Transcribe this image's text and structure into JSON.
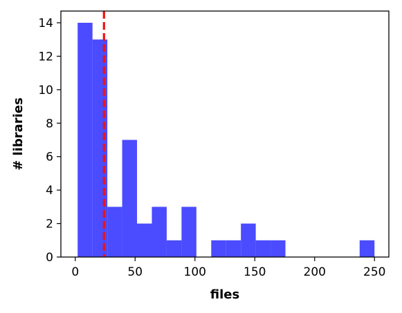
{
  "chart_data": {
    "type": "bar",
    "subtype": "histogram",
    "xlabel": "files",
    "ylabel": "# libraries",
    "xlim": [
      -12,
      262
    ],
    "ylim": [
      0,
      14.7
    ],
    "xticks": [
      0,
      50,
      100,
      150,
      200,
      250
    ],
    "yticks": [
      0,
      2,
      4,
      6,
      8,
      10,
      12,
      14
    ],
    "bins": [
      {
        "x0": 2,
        "x1": 14.4,
        "count": 14
      },
      {
        "x0": 14.4,
        "x1": 26.8,
        "count": 13
      },
      {
        "x0": 26.8,
        "x1": 39.2,
        "count": 3
      },
      {
        "x0": 39.2,
        "x1": 51.6,
        "count": 7
      },
      {
        "x0": 51.6,
        "x1": 64,
        "count": 2
      },
      {
        "x0": 64,
        "x1": 76.4,
        "count": 3
      },
      {
        "x0": 76.4,
        "x1": 88.8,
        "count": 1
      },
      {
        "x0": 88.8,
        "x1": 101.2,
        "count": 3
      },
      {
        "x0": 101.2,
        "x1": 113.6,
        "count": 0
      },
      {
        "x0": 113.6,
        "x1": 126,
        "count": 1
      },
      {
        "x0": 126,
        "x1": 138.4,
        "count": 1
      },
      {
        "x0": 138.4,
        "x1": 150.8,
        "count": 2
      },
      {
        "x0": 150.8,
        "x1": 163.2,
        "count": 1
      },
      {
        "x0": 163.2,
        "x1": 175.6,
        "count": 1
      },
      {
        "x0": 175.6,
        "x1": 188,
        "count": 0
      },
      {
        "x0": 188,
        "x1": 200.4,
        "count": 0
      },
      {
        "x0": 200.4,
        "x1": 212.8,
        "count": 0
      },
      {
        "x0": 212.8,
        "x1": 225.2,
        "count": 0
      },
      {
        "x0": 225.2,
        "x1": 237.6,
        "count": 0
      },
      {
        "x0": 237.6,
        "x1": 250,
        "count": 1
      }
    ],
    "reference_line": {
      "x": 24,
      "style": "dashed"
    },
    "bar_color": "#4b4bff",
    "line_color": "#ee1111",
    "grid": false,
    "legend": "none"
  }
}
